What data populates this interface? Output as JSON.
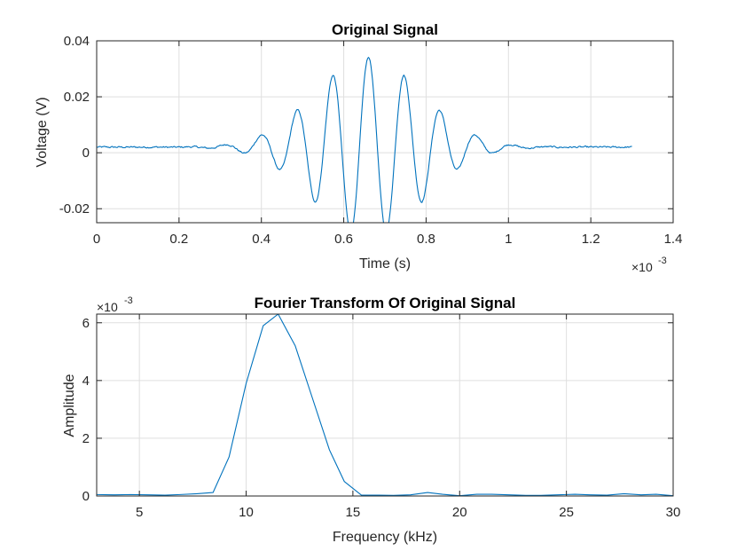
{
  "colors": {
    "series": "#0072BD"
  },
  "chart_data": [
    {
      "type": "line",
      "title": "Original Signal",
      "xlabel": "Time (s)",
      "ylabel": "Voltage (V)",
      "x_exponent_label": "×10",
      "x_exponent_power": "-3",
      "xlim": [
        0,
        1.4
      ],
      "ylim": [
        -0.025,
        0.04
      ],
      "x_scale": 0.001,
      "xticks": [
        0,
        0.2,
        0.4,
        0.6,
        0.8,
        1,
        1.2,
        1.4
      ],
      "xtick_labels": [
        "0",
        "0.2",
        "0.4",
        "0.6",
        "0.8",
        "1",
        "1.2",
        "1.4"
      ],
      "yticks": [
        -0.02,
        0,
        0.02,
        0.04
      ],
      "ytick_labels": [
        "-0.02",
        "0",
        "0.02",
        "0.04"
      ],
      "grid": true,
      "legend": "none",
      "series": [
        {
          "signal_model": {
            "x_start": 0,
            "x_end": 1.3,
            "samples": 650,
            "baseline": 0.002,
            "envelope_center": 0.66,
            "envelope_sigma": 0.13,
            "envelope_amplitude": 0.032,
            "frequency_per_ms": 11.5,
            "phase_at_center": 0.0,
            "noise_amplitude": 0.0006
          }
        }
      ]
    },
    {
      "type": "line",
      "title": "Fourier Transform Of Original Signal",
      "xlabel": "Frequency (kHz)",
      "ylabel": "Amplitude",
      "y_exponent_label": "×10",
      "y_exponent_power": "-3",
      "xlim": [
        3,
        30
      ],
      "ylim": [
        0,
        0.0063
      ],
      "y_scale": 0.001,
      "xticks": [
        5,
        10,
        15,
        20,
        25,
        30
      ],
      "xtick_labels": [
        "5",
        "10",
        "15",
        "20",
        "25",
        "30"
      ],
      "yticks": [
        0,
        0.002,
        0.004,
        0.006
      ],
      "ytick_labels": [
        "0",
        "2",
        "4",
        "6"
      ],
      "grid": true,
      "legend": "none",
      "series": [
        {
          "x": [
            3.0,
            3.85,
            4.6,
            5.4,
            6.2,
            6.9,
            7.7,
            8.45,
            9.2,
            10.0,
            10.8,
            11.5,
            12.3,
            13.1,
            13.9,
            14.6,
            15.4,
            16.2,
            16.9,
            17.7,
            18.5,
            19.2,
            20.0,
            20.8,
            21.5,
            22.3,
            23.1,
            23.8,
            24.6,
            25.4,
            26.1,
            26.9,
            27.7,
            28.5,
            29.2,
            30.0
          ],
          "y": [
            5e-05,
            4e-05,
            5e-05,
            4e-05,
            3e-05,
            5e-05,
            8e-05,
            0.00012,
            0.00135,
            0.0039,
            0.0059,
            0.0063,
            0.0052,
            0.0034,
            0.0016,
            0.0005,
            3e-05,
            3e-05,
            2e-05,
            4e-05,
            0.00012,
            6e-05,
            1e-05,
            6e-05,
            6e-05,
            4e-05,
            2e-05,
            2e-05,
            4e-05,
            6e-05,
            4e-05,
            3e-05,
            8e-05,
            4e-05,
            6e-05,
            1e-05
          ]
        }
      ]
    }
  ]
}
